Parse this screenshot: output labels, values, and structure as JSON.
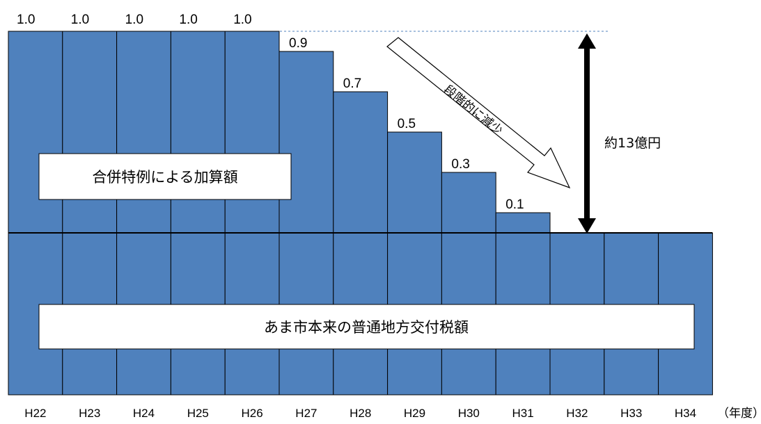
{
  "chart_data": {
    "type": "bar",
    "categories": [
      "H22",
      "H23",
      "H24",
      "H25",
      "H26",
      "H27",
      "H28",
      "H29",
      "H30",
      "H31",
      "H32",
      "H33",
      "H34"
    ],
    "x_unit_label": "（年度）",
    "series": [
      {
        "name": "あま市本来の普通地方交付税額",
        "values": [
          1,
          1,
          1,
          1,
          1,
          1,
          1,
          1,
          1,
          1,
          1,
          1,
          1
        ]
      },
      {
        "name": "合併特例による加算額",
        "values": [
          1.0,
          1.0,
          1.0,
          1.0,
          1.0,
          0.9,
          0.7,
          0.5,
          0.3,
          0.1,
          null,
          null,
          null
        ]
      }
    ],
    "value_labels": [
      "1.0",
      "1.0",
      "1.0",
      "1.0",
      "1.0",
      "0.9",
      "0.7",
      "0.5",
      "0.3",
      "0.1"
    ],
    "annotations": {
      "reduction_arrow": "段階的に減少",
      "total_amount": "約13億円"
    },
    "colors": {
      "bar": "#4f81bd",
      "edge": "#000000",
      "label_box": "#ffffff",
      "dashed_line": "#4f81bd"
    }
  }
}
